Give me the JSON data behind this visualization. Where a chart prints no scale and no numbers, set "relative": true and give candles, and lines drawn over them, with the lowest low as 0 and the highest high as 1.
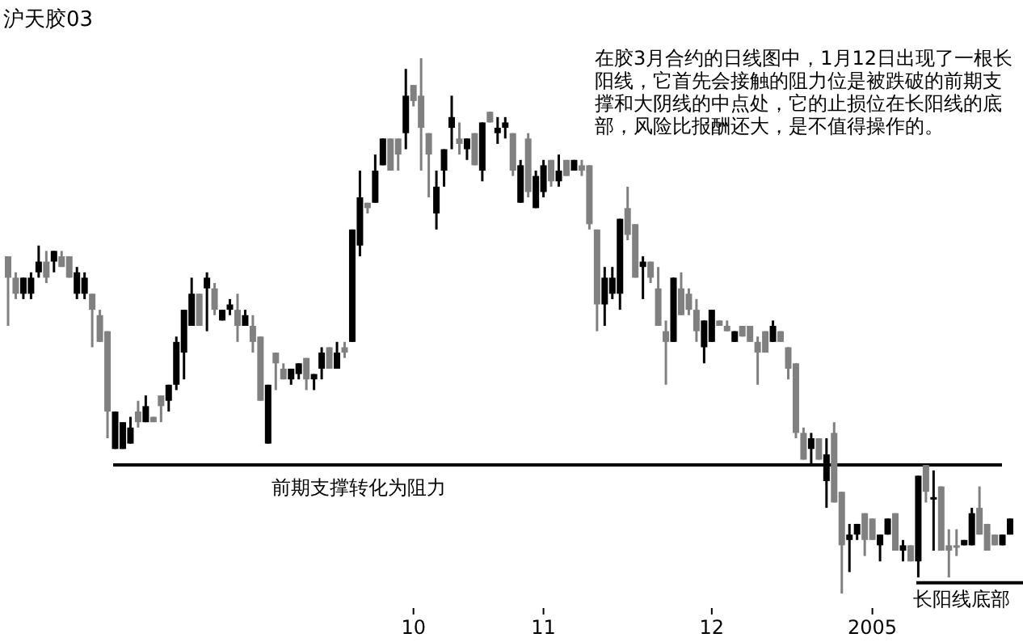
{
  "chart_data": {
    "type": "candlestick",
    "title": "沪天胶03",
    "relative": true,
    "categories": [
      null,
      null,
      null,
      null,
      null,
      null,
      null,
      null,
      null,
      null,
      null,
      null,
      null,
      null,
      null,
      null,
      null,
      null,
      null,
      null,
      null,
      null,
      null,
      null,
      null,
      null,
      null,
      null,
      null,
      null,
      null,
      null,
      null,
      null,
      null,
      null,
      null,
      null,
      null,
      null,
      null,
      null,
      null,
      null,
      null,
      null,
      null,
      null,
      null,
      null,
      null,
      null,
      null,
      "10",
      null,
      null,
      null,
      null,
      null,
      null,
      null,
      null,
      null,
      null,
      null,
      null,
      null,
      null,
      null,
      null,
      "11",
      null,
      null,
      null,
      null,
      null,
      null,
      null,
      null,
      null,
      null,
      null,
      null,
      null,
      null,
      null,
      null,
      null,
      null,
      null,
      null,
      null,
      "12",
      null,
      null,
      null,
      null,
      null,
      null,
      null,
      null,
      null,
      null,
      null,
      null,
      null,
      null,
      null,
      null,
      null,
      null,
      null,
      null,
      "2005",
      null,
      null,
      null,
      null,
      null,
      null,
      null,
      null,
      null,
      null,
      null,
      null,
      null,
      null,
      null,
      null,
      null,
      null
    ],
    "colors": [
      "#808080",
      "#808080",
      "#000000",
      "#000000",
      "#000000",
      "#808080",
      "#000000",
      "#808080",
      "#808080",
      "#000000",
      "#000000",
      "#808080",
      "#808080",
      "#808080",
      "#000000",
      "#000000",
      "#000000",
      "#808080",
      "#000000",
      "#808080",
      "#808080",
      "#000000",
      "#000000",
      "#000000",
      "#000000",
      "#808080",
      "#000000",
      "#808080",
      "#000000",
      "#000000",
      "#808080",
      "#000000",
      "#808080",
      "#808080",
      "#000000",
      "#808080",
      "#808080",
      "#000000",
      "#000000",
      "#808080",
      "#000000",
      "#000000",
      "#808080",
      "#000000",
      "#808080",
      "#000000",
      "#000000",
      "#808080",
      "#000000",
      "#000000",
      "#808080",
      "#808080",
      "#000000",
      "#808080",
      "#808080",
      "#808080",
      "#000000",
      "#000000",
      "#000000",
      "#808080",
      "#000000",
      "#808080",
      "#000000",
      "#808080",
      "#000000",
      "#000000",
      "#808080",
      "#000000",
      "#808080",
      "#000000",
      "#000000",
      "#808080",
      "#000000",
      "#808080",
      "#000000",
      "#808080",
      "#808080",
      "#808080",
      "#000000",
      "#000000",
      "#000000",
      "#808080",
      "#808080",
      "#000000",
      "#808080",
      "#808080",
      "#808080",
      "#000000",
      "#808080",
      "#808080",
      "#808080",
      "#000000",
      "#000000",
      "#808080",
      "#808080",
      "#000000",
      "#808080",
      "#808080",
      "#808080",
      "#808080",
      "#000000",
      "#808080",
      "#808080",
      "#808080",
      "#808080",
      "#000000",
      "#808080",
      "#000000",
      "#808080",
      "#808080",
      "#000000",
      "#000000",
      "#808080",
      "#808080",
      "#000000",
      "#000000",
      "#808080",
      "#000000",
      "#808080",
      "#000000",
      "#808080",
      "#000000",
      "#808080",
      "#808080",
      "#808080",
      "#000000",
      "#000000",
      "#808080",
      "#808080",
      "#808080",
      "#000000",
      "#000000"
    ],
    "ohlc": [
      [
        0.63,
        0.63,
        0.5,
        0.59
      ],
      [
        0.59,
        0.6,
        0.55,
        0.56
      ],
      [
        0.56,
        0.59,
        0.55,
        0.59
      ],
      [
        0.56,
        0.6,
        0.55,
        0.59
      ],
      [
        0.6,
        0.65,
        0.59,
        0.62
      ],
      [
        0.62,
        0.64,
        0.58,
        0.59
      ],
      [
        0.62,
        0.64,
        0.6,
        0.64
      ],
      [
        0.63,
        0.64,
        0.61,
        0.61
      ],
      [
        0.63,
        0.63,
        0.59,
        0.59
      ],
      [
        0.56,
        0.61,
        0.55,
        0.6
      ],
      [
        0.56,
        0.6,
        0.55,
        0.59
      ],
      [
        0.56,
        0.56,
        0.46,
        0.53
      ],
      [
        0.52,
        0.53,
        0.47,
        0.47
      ],
      [
        0.49,
        0.49,
        0.29,
        0.34
      ],
      [
        0.27,
        0.34,
        0.27,
        0.34
      ],
      [
        0.27,
        0.32,
        0.27,
        0.32
      ],
      [
        0.28,
        0.33,
        0.28,
        0.31
      ],
      [
        0.34,
        0.36,
        0.31,
        0.32
      ],
      [
        0.32,
        0.37,
        0.32,
        0.35
      ],
      [
        0.33,
        0.33,
        0.32,
        0.32
      ],
      [
        0.37,
        0.37,
        0.32,
        0.35
      ],
      [
        0.36,
        0.39,
        0.34,
        0.39
      ],
      [
        0.39,
        0.48,
        0.38,
        0.47
      ],
      [
        0.45,
        0.53,
        0.4,
        0.53
      ],
      [
        0.5,
        0.59,
        0.5,
        0.56
      ],
      [
        0.56,
        0.56,
        0.5,
        0.5
      ],
      [
        0.57,
        0.6,
        0.49,
        0.59
      ],
      [
        0.57,
        0.58,
        0.52,
        0.53
      ],
      [
        0.51,
        0.53,
        0.51,
        0.53
      ],
      [
        0.53,
        0.55,
        0.52,
        0.54
      ],
      [
        0.53,
        0.56,
        0.47,
        0.5
      ],
      [
        0.5,
        0.53,
        0.5,
        0.52
      ],
      [
        0.5,
        0.52,
        0.45,
        0.47
      ],
      [
        0.48,
        0.48,
        0.36,
        0.36
      ],
      [
        0.28,
        0.39,
        0.28,
        0.39
      ],
      [
        0.45,
        0.45,
        0.38,
        0.43
      ],
      [
        0.42,
        0.43,
        0.4,
        0.4
      ],
      [
        0.4,
        0.42,
        0.39,
        0.42
      ],
      [
        0.41,
        0.43,
        0.4,
        0.43
      ],
      [
        0.44,
        0.44,
        0.38,
        0.4
      ],
      [
        0.4,
        0.41,
        0.38,
        0.41
      ],
      [
        0.42,
        0.46,
        0.4,
        0.45
      ],
      [
        0.46,
        0.46,
        0.42,
        0.42
      ],
      [
        0.42,
        0.47,
        0.42,
        0.45
      ],
      [
        0.46,
        0.47,
        0.44,
        0.45
      ],
      [
        0.47,
        0.68,
        0.47,
        0.68
      ],
      [
        0.65,
        0.79,
        0.63,
        0.74
      ],
      [
        0.73,
        0.73,
        0.71,
        0.72
      ],
      [
        0.73,
        0.82,
        0.73,
        0.79
      ],
      [
        0.8,
        0.85,
        0.8,
        0.85
      ],
      [
        0.85,
        0.85,
        0.79,
        0.79
      ],
      [
        0.85,
        0.85,
        0.79,
        0.82
      ],
      [
        0.86,
        0.98,
        0.83,
        0.93
      ],
      [
        0.95,
        0.95,
        0.91,
        0.92
      ],
      [
        0.93,
        1,
        0.79,
        0.87
      ],
      [
        0.86,
        0.86,
        0.74,
        0.82
      ],
      [
        0.71,
        0.79,
        0.68,
        0.76
      ],
      [
        0.79,
        0.83,
        0.76,
        0.83
      ],
      [
        0.87,
        0.93,
        0.83,
        0.89
      ],
      [
        0.85,
        0.88,
        0.82,
        0.84
      ],
      [
        0.83,
        0.85,
        0.81,
        0.85
      ],
      [
        0.86,
        0.86,
        0.8,
        0.8
      ],
      [
        0.79,
        0.88,
        0.77,
        0.88
      ],
      [
        0.9,
        0.9,
        0.88,
        0.88
      ],
      [
        0.86,
        0.89,
        0.84,
        0.87
      ],
      [
        0.87,
        0.89,
        0.85,
        0.88
      ],
      [
        0.86,
        0.86,
        0.78,
        0.79
      ],
      [
        0.73,
        0.81,
        0.73,
        0.8
      ],
      [
        0.85,
        0.86,
        0.74,
        0.75
      ],
      [
        0.72,
        0.79,
        0.72,
        0.78
      ],
      [
        0.75,
        0.81,
        0.74,
        0.8
      ],
      [
        0.81,
        0.81,
        0.76,
        0.77
      ],
      [
        0.77,
        0.82,
        0.76,
        0.79
      ],
      [
        0.81,
        0.81,
        0.78,
        0.78
      ],
      [
        0.79,
        0.81,
        0.79,
        0.81
      ],
      [
        0.8,
        0.81,
        0.78,
        0.79
      ],
      [
        0.8,
        0.8,
        0.68,
        0.69
      ],
      [
        0.68,
        0.68,
        0.49,
        0.54
      ],
      [
        0.54,
        0.61,
        0.5,
        0.59
      ],
      [
        0.56,
        0.61,
        0.55,
        0.59
      ],
      [
        0.56,
        0.7,
        0.53,
        0.7
      ],
      [
        0.72,
        0.76,
        0.66,
        0.67
      ],
      [
        0.69,
        0.69,
        0.59,
        0.59
      ],
      [
        0.61,
        0.63,
        0.55,
        0.62
      ],
      [
        0.62,
        0.62,
        0.58,
        0.59
      ],
      [
        0.57,
        0.61,
        0.5,
        0.5
      ],
      [
        0.49,
        0.51,
        0.39,
        0.47
      ],
      [
        0.47,
        0.59,
        0.47,
        0.59
      ],
      [
        0.57,
        0.6,
        0.52,
        0.52
      ],
      [
        0.56,
        0.57,
        0.52,
        0.53
      ],
      [
        0.53,
        0.55,
        0.47,
        0.49
      ],
      [
        0.46,
        0.51,
        0.43,
        0.51
      ],
      [
        0.47,
        0.53,
        0.47,
        0.53
      ],
      [
        0.51,
        0.51,
        0.5,
        0.5
      ],
      [
        0.5,
        0.51,
        0.49,
        0.49
      ],
      [
        0.47,
        0.49,
        0.47,
        0.49
      ],
      [
        0.5,
        0.5,
        0.48,
        0.48
      ],
      [
        0.5,
        0.5,
        0.47,
        0.47
      ],
      [
        0.47,
        0.48,
        0.39,
        0.45
      ],
      [
        0.49,
        0.49,
        0.45,
        0.45
      ],
      [
        0.47,
        0.51,
        0.47,
        0.5
      ],
      [
        0.49,
        0.49,
        0.47,
        0.47
      ],
      [
        0.46,
        0.46,
        0.4,
        0.42
      ],
      [
        0.43,
        0.43,
        0.29,
        0.3
      ],
      [
        0.3,
        0.31,
        0.25,
        0.25
      ],
      [
        0.27,
        0.3,
        0.24,
        0.29
      ],
      [
        0.29,
        0.29,
        0.25,
        0.25
      ],
      [
        0.21,
        0.29,
        0.16,
        0.26
      ],
      [
        0.3,
        0.32,
        0.17,
        0.17
      ],
      [
        0.19,
        0.19,
        0,
        0.09
      ],
      [
        0.1,
        0.13,
        0.04,
        0.11
      ],
      [
        0.11,
        0.13,
        0.1,
        0.13
      ],
      [
        0.15,
        0.15,
        0.07,
        0.1
      ],
      [
        0.14,
        0.14,
        0.1,
        0.1
      ],
      [
        0.09,
        0.11,
        0.06,
        0.11
      ],
      [
        0.11,
        0.14,
        0.11,
        0.14
      ],
      [
        0.15,
        0.15,
        0.08,
        0.08
      ],
      [
        0.08,
        0.1,
        0.06,
        0.09
      ],
      [
        0.09,
        0.09,
        0.06,
        0.06
      ],
      [
        0.06,
        0.22,
        0.03,
        0.22
      ],
      [
        0.24,
        0.24,
        0.17,
        0.19
      ],
      [
        0.18,
        0.23,
        0.08,
        0.18
      ],
      [
        0.2,
        0.2,
        0.08,
        0.08
      ],
      [
        0.09,
        0.12,
        0.03,
        0.08
      ],
      [
        0.09,
        0.12,
        0.07,
        0.09
      ],
      [
        0.09,
        0.1,
        0.09,
        0.1
      ],
      [
        0.09,
        0.16,
        0.09,
        0.15
      ],
      [
        0.16,
        0.2,
        0.11,
        0.11
      ],
      [
        0.13,
        0.13,
        0.08,
        0.08
      ],
      [
        0.11,
        0.11,
        0.09,
        0.09
      ],
      [
        0.09,
        0.11,
        0.09,
        0.11
      ],
      [
        0.11,
        0.14,
        0.11,
        0.14
      ]
    ],
    "ref_lines": [
      {
        "axis": "y",
        "value": 0.24,
        "label": "前期支撑转化为阻力",
        "color": "#000000"
      },
      {
        "axis": "y",
        "value": 0.02,
        "label": "长阳线底部",
        "color": "#000000"
      }
    ],
    "annotations": [
      "在胶3月合约的日线图中，1月12日出现了一根长阳线，它首先会接触的阻力位是被跌破的前期支撑和大阴线的中点处，它的止损位在长阳线的底部，风险比报酬还大，是不值得操作的。"
    ]
  }
}
